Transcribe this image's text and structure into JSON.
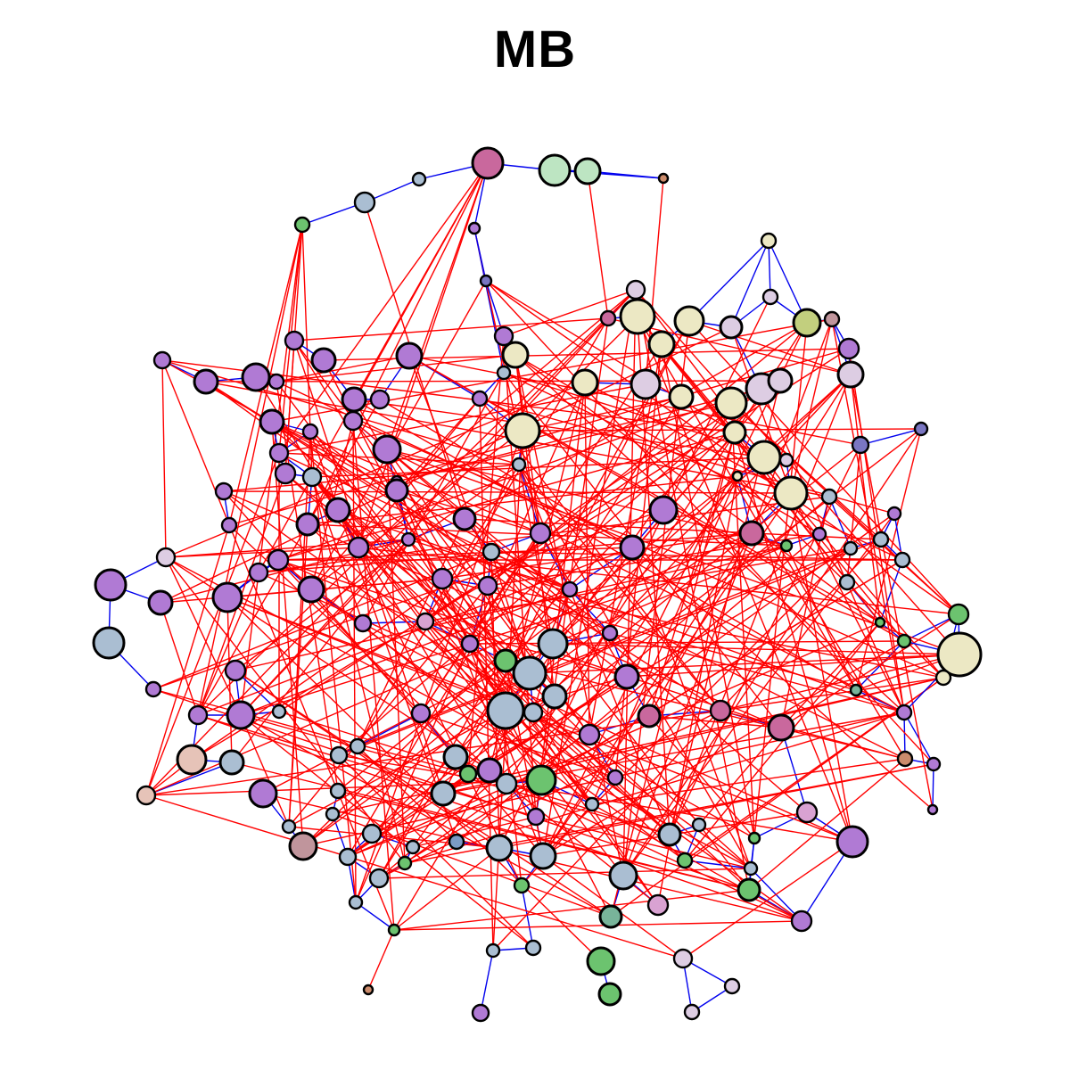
{
  "title": "MB",
  "colors": {
    "purple": "#b07ad4",
    "blue_gray": "#aabed2",
    "cream": "#ece8c4",
    "lilac": "#ddcde3",
    "pink": "#c9689d",
    "green": "#6cc36f",
    "mint": "#bde5c2",
    "peach": "#e6c3b8",
    "olive": "#c2cf7e",
    "slate": "#7a76c2",
    "teal": "#78b49a",
    "rose_brown": "#c0959c",
    "orange_brown": "#cc8c6c",
    "steel": "#7b9ac4",
    "light_pink": "#d9a2d2",
    "edge_red": "#ff0000",
    "edge_blue": "#0000ee"
  },
  "node_color_groups": [
    "purple",
    "blue_gray",
    "cream",
    "lilac",
    "pink",
    "green",
    "mint",
    "peach",
    "olive",
    "slate",
    "teal",
    "rose_brown",
    "orange_brown",
    "steel",
    "light_pink"
  ],
  "edge_types": [
    "edge_red",
    "edge_blue"
  ]
}
